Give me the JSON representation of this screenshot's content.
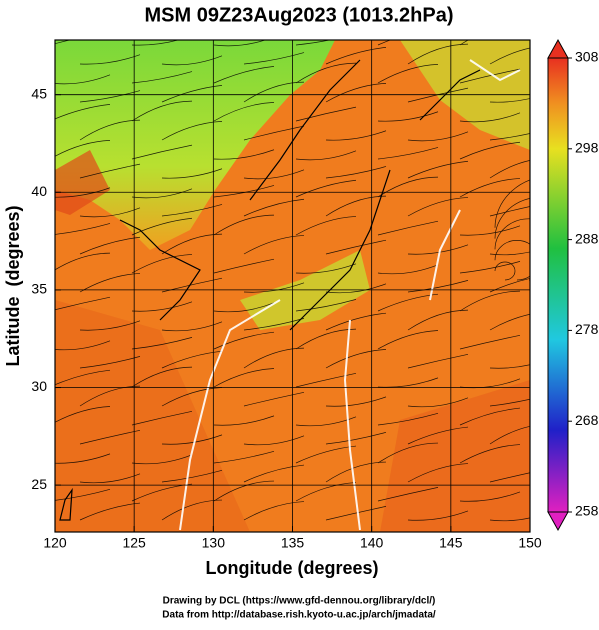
{
  "chart_data": {
    "type": "map",
    "title": "MSM 09Z23Aug2023 (1013.2hPa)",
    "xlabel": "Longitude (degrees)",
    "ylabel": "Latitude  (degrees)",
    "xlim": [
      120,
      150
    ],
    "xticks": [
      120,
      125,
      130,
      135,
      140,
      145,
      150
    ],
    "ylim": [
      22.6,
      47.8
    ],
    "yticks": [
      25,
      30,
      35,
      40,
      45
    ],
    "grid": true,
    "colorbar": {
      "lim": [
        258,
        308
      ],
      "ticks": [
        258,
        268,
        278,
        288,
        298,
        308
      ]
    },
    "footer": [
      "Drawing by DCL (https://www.gfd-dennou.org/library/dcl/)",
      "Data from http://database.rish.kyoto-u.ac.jp/arch/jmadata/"
    ]
  }
}
